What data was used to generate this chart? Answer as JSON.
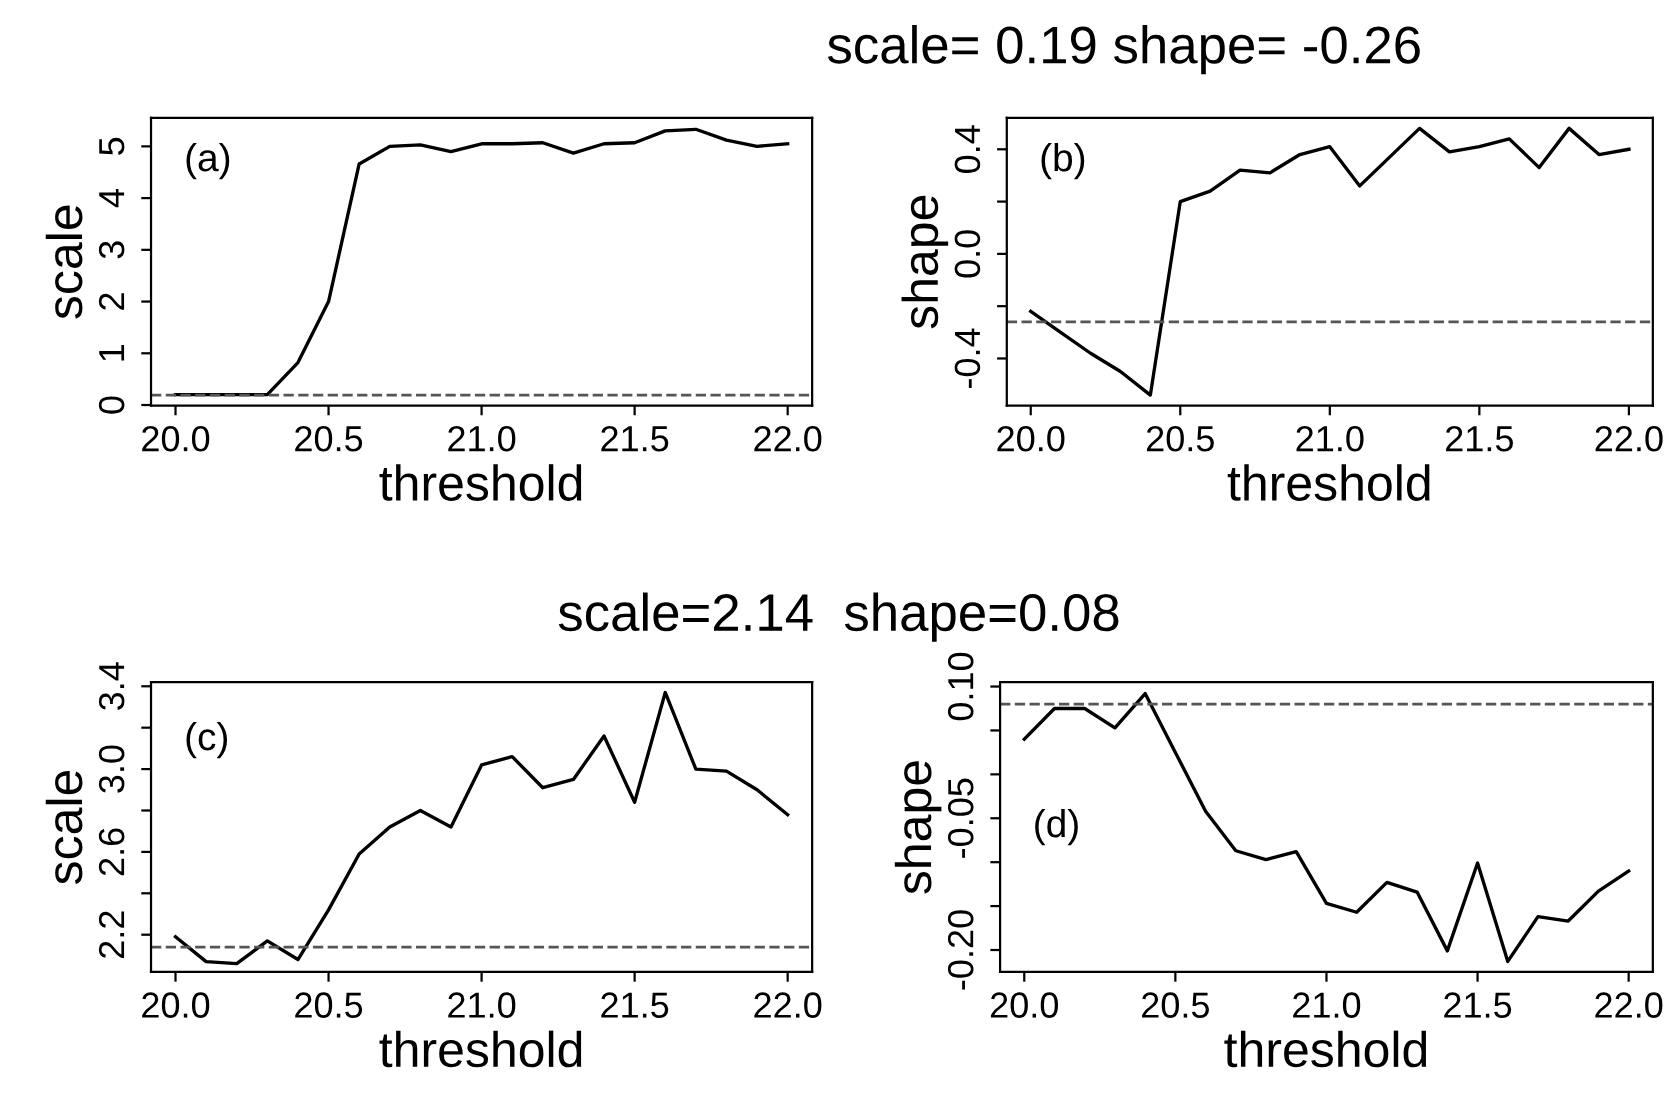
{
  "chart_data": [
    {
      "type": "line",
      "xlabel": "threshold",
      "ylabel": "scale",
      "annotations": [
        "(a)"
      ],
      "x": [
        20.0,
        20.1,
        20.2,
        20.3,
        20.4,
        20.5,
        20.6,
        20.7,
        20.8,
        20.9,
        21.0,
        21.1,
        21.2,
        21.3,
        21.4,
        21.5,
        21.6,
        21.7,
        21.8,
        21.9,
        22.0
      ],
      "series": [
        {
          "color": "#000000",
          "values": [
            0.2,
            0.2,
            0.2,
            0.2,
            0.82,
            2.0,
            4.66,
            5.0,
            5.03,
            4.9,
            5.05,
            5.05,
            5.07,
            4.87,
            5.05,
            5.07,
            5.3,
            5.33,
            5.12,
            5.0,
            5.05
          ]
        }
      ],
      "xlim": [
        19.92,
        22.08
      ],
      "ylim": [
        -0.01,
        5.55
      ],
      "xticks": [
        {
          "value": 20,
          "label": "20.0"
        },
        {
          "value": 20.5,
          "label": "20.5"
        },
        {
          "value": 21,
          "label": "21.0"
        },
        {
          "value": 21.5,
          "label": "21.5"
        },
        {
          "value": 22,
          "label": "22.0"
        }
      ],
      "yticks": [
        0,
        1,
        2,
        3,
        4,
        5
      ],
      "ref_lines": [
        {
          "axis": "y",
          "value": 0.19,
          "color": "#555555",
          "line_style": "dashed"
        }
      ]
    },
    {
      "type": "line",
      "title": "scale= 0.19 shape= -0.26",
      "xlabel": "threshold",
      "ylabel": "shape",
      "annotations": [
        "(b)"
      ],
      "x": [
        20.0,
        20.1,
        20.2,
        20.3,
        20.4,
        20.5,
        20.6,
        20.7,
        20.8,
        20.9,
        21.0,
        21.1,
        21.2,
        21.3,
        21.4,
        21.5,
        21.6,
        21.7,
        21.8,
        21.9,
        22.0
      ],
      "series": [
        {
          "color": "#000000",
          "values": [
            -0.22,
            -0.3,
            -0.38,
            -0.45,
            -0.54,
            0.2,
            0.24,
            0.32,
            0.31,
            0.38,
            0.41,
            0.26,
            0.37,
            0.48,
            0.39,
            0.41,
            0.44,
            0.33,
            0.48,
            0.38,
            0.4
          ]
        }
      ],
      "xlim": [
        19.92,
        22.08
      ],
      "ylim": [
        -0.58,
        0.52
      ],
      "xticks": [
        {
          "value": 20,
          "label": "20.0"
        },
        {
          "value": 20.5,
          "label": "20.5"
        },
        {
          "value": 21,
          "label": "21.0"
        },
        {
          "value": 21.5,
          "label": "21.5"
        },
        {
          "value": 22,
          "label": "22.0"
        }
      ],
      "yticks": [
        {
          "value": -0.4,
          "label": "-0.4"
        },
        {
          "value": -0.2,
          "label": null
        },
        {
          "value": 0,
          "label": "0.0"
        },
        {
          "value": 0.2,
          "label": null
        },
        {
          "value": 0.4,
          "label": "0.4"
        }
      ],
      "ref_lines": [
        {
          "axis": "y",
          "value": -0.26,
          "color": "#555555",
          "line_style": "dashed"
        }
      ]
    },
    {
      "type": "line",
      "title": "scale=2.14  shape=0.08",
      "xlabel": "threshold",
      "ylabel": "scale",
      "annotations": [
        "(c)"
      ],
      "x": [
        20.0,
        20.1,
        20.2,
        20.3,
        20.4,
        20.5,
        20.6,
        20.7,
        20.8,
        20.9,
        21.0,
        21.1,
        21.2,
        21.3,
        21.4,
        21.5,
        21.6,
        21.7,
        21.8,
        21.9,
        22.0
      ],
      "series": [
        {
          "color": "#000000",
          "values": [
            2.19,
            2.07,
            2.06,
            2.17,
            2.08,
            2.32,
            2.59,
            2.72,
            2.8,
            2.72,
            3.02,
            3.06,
            2.91,
            2.95,
            3.16,
            2.84,
            3.37,
            3.0,
            2.99,
            2.9,
            2.78
          ]
        }
      ],
      "xlim": [
        19.92,
        22.08
      ],
      "ylim": [
        2.02,
        3.42
      ],
      "xticks": [
        {
          "value": 20,
          "label": "20.0"
        },
        {
          "value": 20.5,
          "label": "20.5"
        },
        {
          "value": 21,
          "label": "21.0"
        },
        {
          "value": 21.5,
          "label": "21.5"
        },
        {
          "value": 22,
          "label": "22.0"
        }
      ],
      "yticks": [
        2.2,
        {
          "value": 2.4,
          "label": null
        },
        2.6,
        {
          "value": 2.8,
          "label": null
        },
        {
          "value": 3.0,
          "label": "3.0"
        },
        {
          "value": 3.2,
          "label": null
        },
        3.4
      ],
      "ref_lines": [
        {
          "axis": "y",
          "value": 2.14,
          "color": "#555555",
          "line_style": "dashed"
        }
      ]
    },
    {
      "type": "line",
      "xlabel": "threshold",
      "ylabel": "shape",
      "annotations": [
        "(d)"
      ],
      "x": [
        20.0,
        20.1,
        20.2,
        20.3,
        20.4,
        20.5,
        20.6,
        20.7,
        20.8,
        20.9,
        21.0,
        21.1,
        21.2,
        21.3,
        21.4,
        21.5,
        21.6,
        21.7,
        21.8,
        21.9,
        22.0
      ],
      "series": [
        {
          "color": "#000000",
          "values": [
            0.04,
            0.075,
            0.075,
            0.053,
            0.092,
            0.025,
            -0.042,
            -0.087,
            -0.097,
            -0.088,
            -0.147,
            -0.157,
            -0.123,
            -0.134,
            -0.201,
            -0.101,
            -0.213,
            -0.162,
            -0.167,
            -0.133,
            -0.11
          ]
        }
      ],
      "xlim": [
        19.92,
        22.08
      ],
      "ylim": [
        -0.225,
        0.105
      ],
      "xticks": [
        {
          "value": 20,
          "label": "20.0"
        },
        {
          "value": 20.5,
          "label": "20.5"
        },
        {
          "value": 21,
          "label": "21.0"
        },
        {
          "value": 21.5,
          "label": "21.5"
        },
        {
          "value": 22,
          "label": "22.0"
        }
      ],
      "yticks": [
        {
          "value": -0.2,
          "label": "-0.20"
        },
        {
          "value": -0.15,
          "label": null
        },
        {
          "value": -0.1,
          "label": null
        },
        -0.05,
        {
          "value": 0,
          "label": null
        },
        {
          "value": 0.05,
          "label": null
        },
        {
          "value": 0.1,
          "label": "0.10"
        }
      ],
      "ref_lines": [
        {
          "axis": "y",
          "value": 0.08,
          "color": "#555555",
          "line_style": "dashed"
        }
      ]
    }
  ]
}
